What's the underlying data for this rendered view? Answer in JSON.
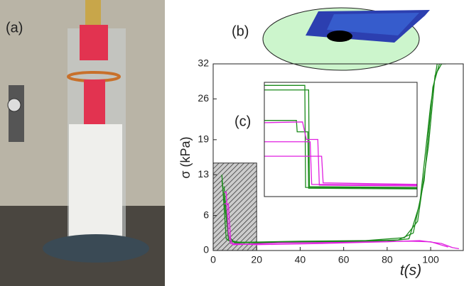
{
  "panel_labels": [
    "(a)",
    "(b)",
    "(c)"
  ],
  "chart_data": [
    {
      "type": "line",
      "ylabel": "σ (kPa)",
      "xlabel": "t(s)",
      "xlim": [
        0,
        115
      ],
      "xticks": [
        0,
        20,
        40,
        60,
        80,
        100
      ],
      "ylim": [
        0,
        32
      ],
      "yticks": [
        0,
        6,
        13,
        19,
        26,
        32
      ],
      "shaded_region": {
        "x": [
          0,
          20
        ],
        "y": [
          0,
          15
        ]
      },
      "series": [
        {
          "color": "#1a8a1a",
          "x": [
            4,
            6,
            8,
            20,
            40,
            60,
            80,
            90,
            95,
            100,
            103
          ],
          "values": [
            13,
            2,
            1.5,
            1.3,
            1.4,
            1.5,
            1.6,
            2,
            8,
            25,
            32
          ]
        },
        {
          "color": "#1a8a1a",
          "x": [
            4,
            7,
            10,
            30,
            60,
            85,
            92,
            97,
            101,
            104,
            107
          ],
          "values": [
            12,
            2.5,
            1.3,
            1.5,
            1.6,
            1.8,
            3,
            12,
            28,
            32,
            32
          ]
        },
        {
          "color": "#1a8a1a",
          "x": [
            5,
            7,
            12,
            40,
            70,
            88,
            94,
            99,
            102,
            105
          ],
          "values": [
            11,
            1.8,
            1.4,
            1.6,
            1.7,
            2.2,
            5,
            18,
            30,
            32
          ]
        },
        {
          "color": "#e020e0",
          "x": [
            5,
            6,
            7,
            8,
            20,
            50,
            80,
            95,
            105,
            110,
            113
          ],
          "values": [
            10,
            10,
            3,
            1.2,
            1,
            1.2,
            1.5,
            1.7,
            1.2,
            0.5,
            0.3
          ]
        },
        {
          "color": "#e020e0",
          "x": [
            5,
            7,
            8,
            9,
            30,
            60,
            90,
            100,
            108
          ],
          "values": [
            8,
            8,
            2,
            1,
            1.3,
            1.4,
            1.6,
            1.5,
            0.6
          ]
        }
      ]
    },
    {
      "type": "line",
      "xlim": [
        0,
        20
      ],
      "ylim": [
        0,
        15
      ],
      "series": [
        {
          "color": "#1a8a1a",
          "x": [
            0,
            5.3,
            5.4,
            20
          ],
          "values": [
            14.6,
            14.6,
            1.2,
            1.1
          ]
        },
        {
          "color": "#1a8a1a",
          "x": [
            0,
            5.8,
            5.9,
            20
          ],
          "values": [
            14,
            14,
            1.3,
            1.2
          ]
        },
        {
          "color": "#1a8a1a",
          "x": [
            0,
            4.2,
            4.3,
            5.7,
            5.8,
            20
          ],
          "values": [
            10,
            10,
            8.5,
            8.5,
            1.1,
            1.0
          ]
        },
        {
          "color": "#e020e0",
          "x": [
            0,
            5,
            5.5,
            7,
            7.2,
            20
          ],
          "values": [
            9.7,
            9.8,
            7.5,
            7.5,
            1.5,
            1.4
          ]
        },
        {
          "color": "#e020e0",
          "x": [
            0,
            6,
            6.2,
            20
          ],
          "values": [
            7.2,
            7.2,
            1.6,
            1.5
          ]
        },
        {
          "color": "#e020e0",
          "x": [
            0,
            7.5,
            7.7,
            20
          ],
          "values": [
            5.3,
            5.3,
            1.8,
            1.6
          ]
        }
      ]
    }
  ]
}
